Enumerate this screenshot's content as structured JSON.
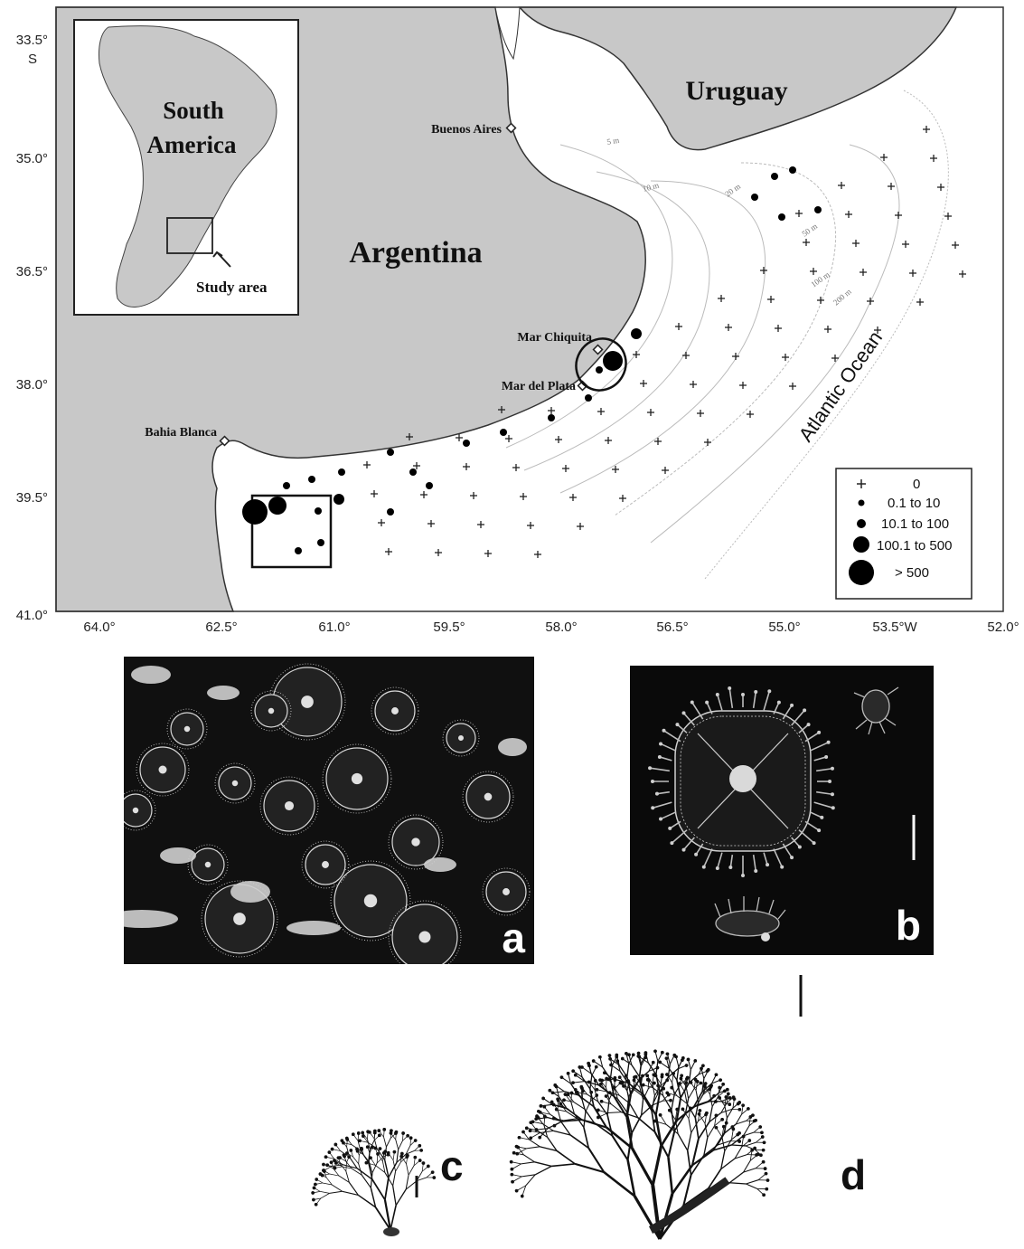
{
  "map": {
    "inset": {
      "continent_label_line1": "South",
      "continent_label_line2": "America",
      "study_area_label": "Study area"
    },
    "countries": {
      "uruguay": "Uruguay",
      "argentina": "Argentina"
    },
    "places": {
      "buenos_aires": "Buenos Aires",
      "mar_chiquita": "Mar Chiquita",
      "mar_del_plata": "Mar del Plata",
      "bahia_blanca": "Bahia Blanca"
    },
    "ocean": "Atlantic Ocean",
    "isobaths": [
      "5 m",
      "10 m",
      "20 m",
      "50 m",
      "100 m",
      "200 m"
    ],
    "y_axis": {
      "ticks": [
        "33.5°",
        "35.0°",
        "36.5°",
        "38.0°",
        "39.5°",
        "41.0°"
      ],
      "hemisphere": "S"
    },
    "x_axis": {
      "ticks": [
        "64.0°",
        "62.5°",
        "61.0°",
        "59.5°",
        "58.0°",
        "56.5°",
        "55.0°",
        "53.5°W",
        "52.0°"
      ]
    },
    "legend": {
      "items": [
        {
          "symbol": "cross",
          "label": "0"
        },
        {
          "symbol": "dot-xs",
          "label": "0.1 to 10"
        },
        {
          "symbol": "dot-s",
          "label": "10.1 to 100"
        },
        {
          "symbol": "dot-m",
          "label": "100.1 to 500"
        },
        {
          "symbol": "dot-l",
          "label": "> 500"
        }
      ]
    },
    "colors": {
      "land": "#c8c8c8",
      "sea": "#ffffff",
      "marker": "#000000"
    }
  },
  "photos": {
    "a": {
      "label": "a"
    },
    "b": {
      "label": "b"
    }
  },
  "drawings": {
    "c": {
      "label": "c"
    },
    "d": {
      "label": "d"
    }
  }
}
